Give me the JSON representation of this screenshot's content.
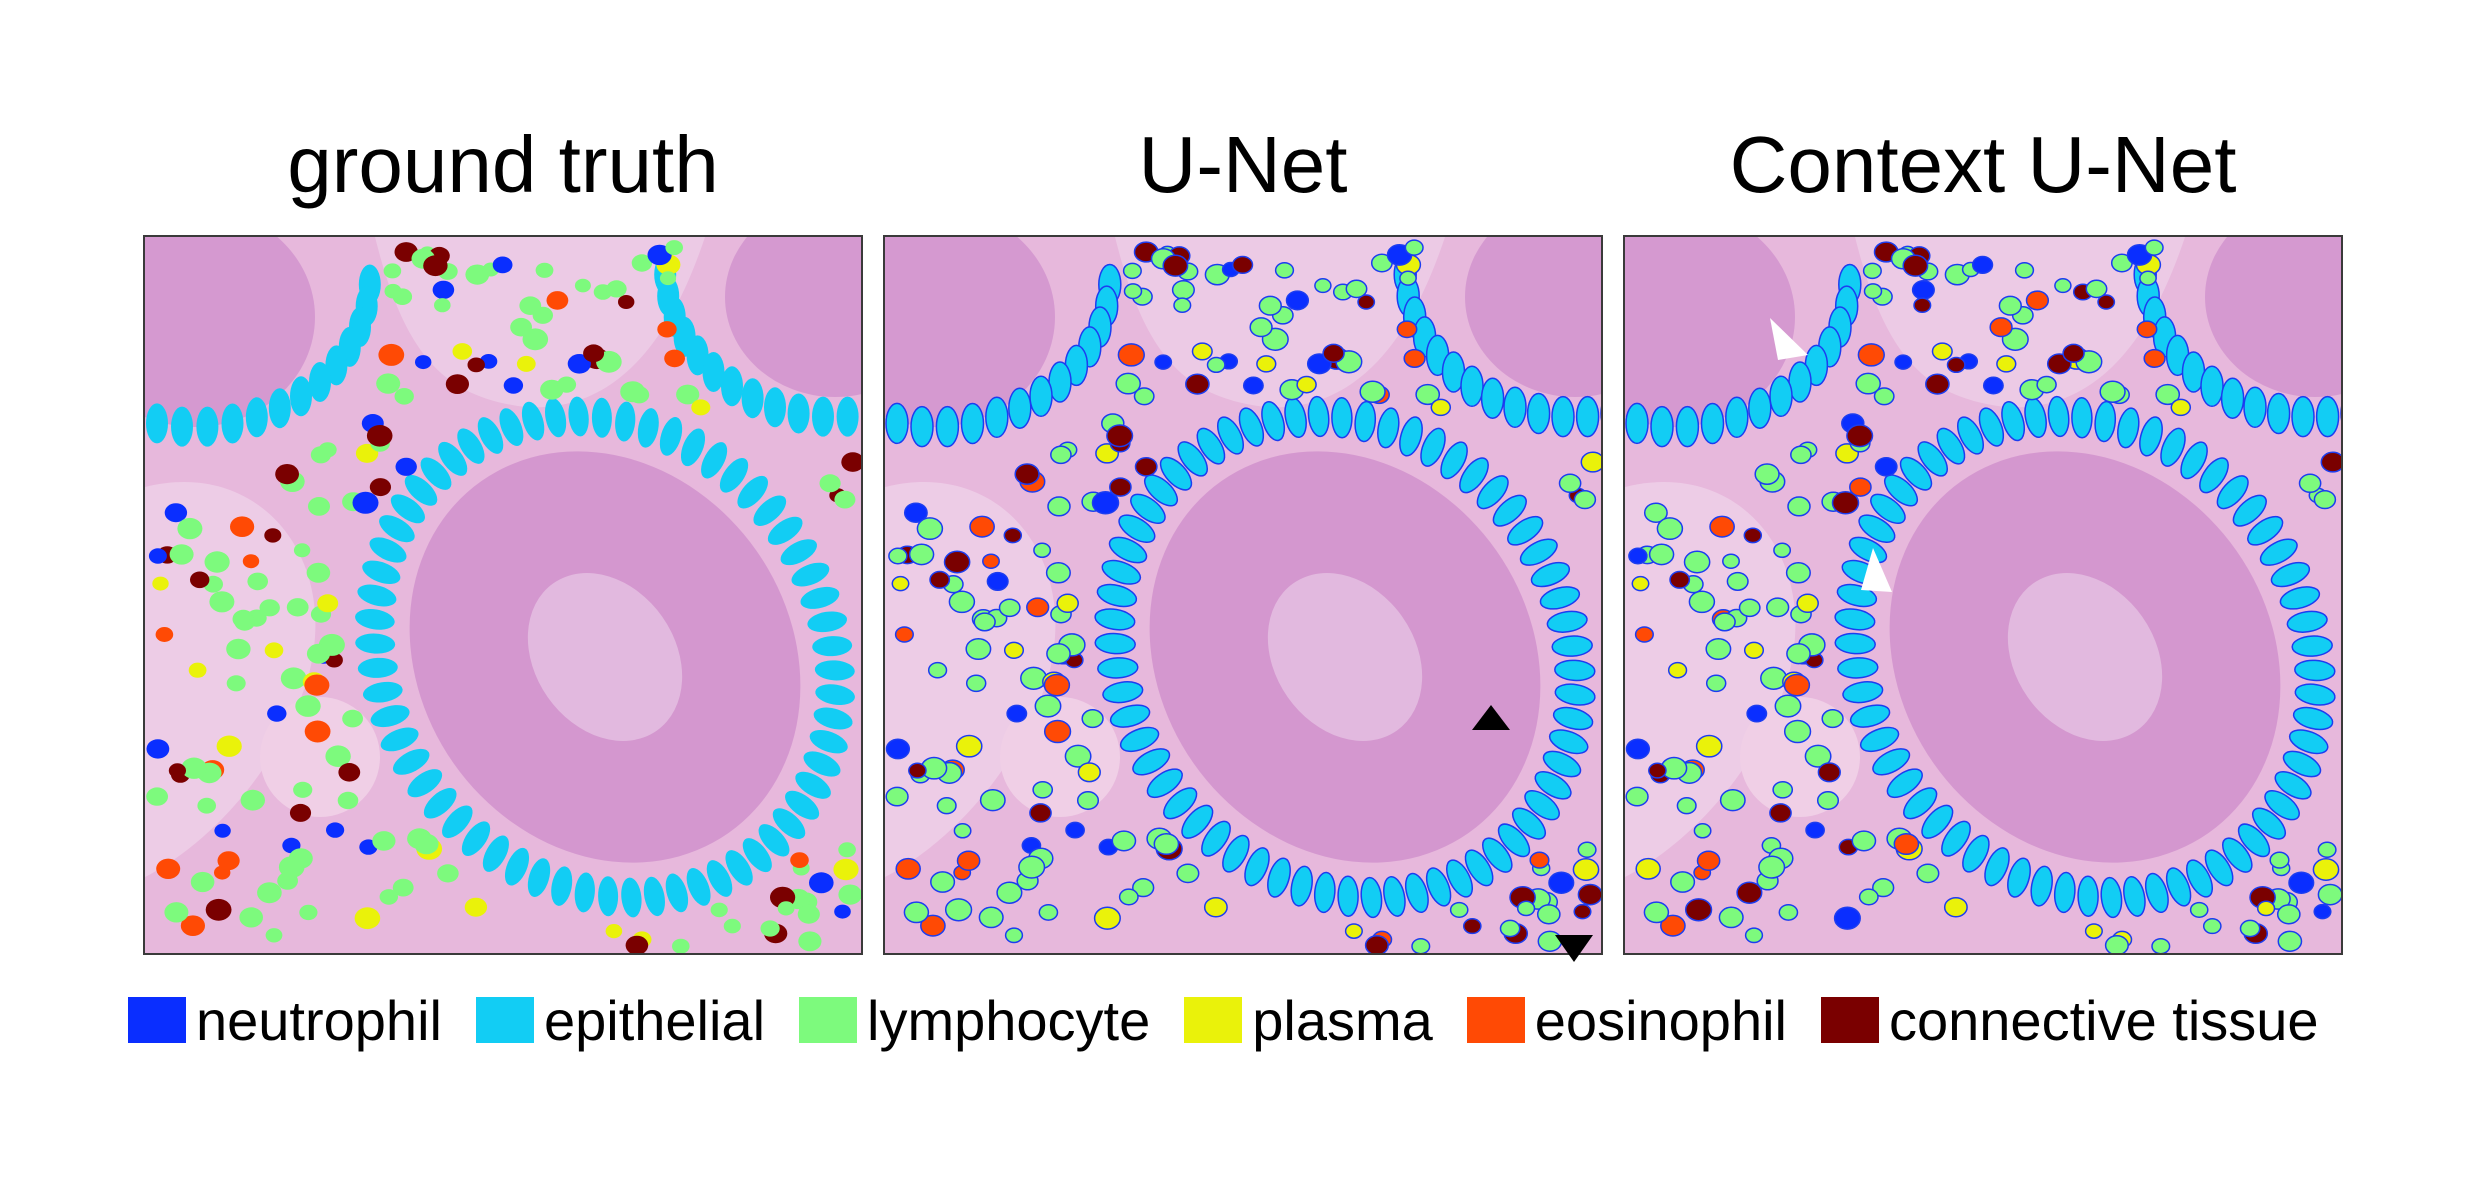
{
  "panels": [
    {
      "id": "gt",
      "title": "ground truth"
    },
    {
      "id": "unet",
      "title": "U-Net"
    },
    {
      "id": "cunet",
      "title": "Context U-Net"
    }
  ],
  "legend": [
    {
      "label": "neutrophil",
      "color": "#0a2eff"
    },
    {
      "label": "epithelial",
      "color": "#12cdf4"
    },
    {
      "label": "lymphocyte",
      "color": "#7dfa7d"
    },
    {
      "label": "plasma",
      "color": "#eaf20a"
    },
    {
      "label": "eosinophil",
      "color": "#ff4a05"
    },
    {
      "label": "connective tissue",
      "color": "#7a0000"
    }
  ],
  "arrowheads": {
    "unet": "black",
    "cunet": "white"
  },
  "tissue_colors": {
    "background": "#e7b8dc",
    "stroma": "#f1d8ec",
    "lumen": "#cf8fcc"
  }
}
